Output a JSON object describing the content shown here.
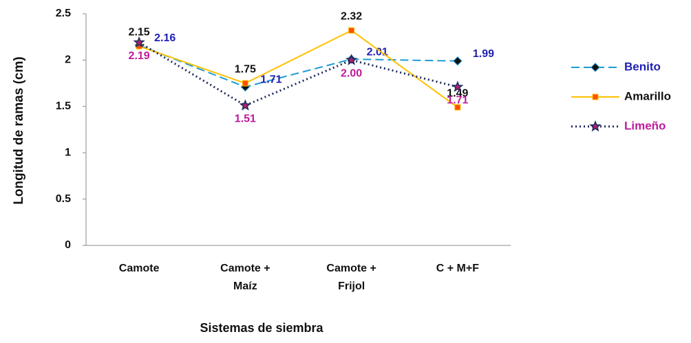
{
  "chart_data": {
    "type": "line",
    "y_label": "Longitud de ramas  (cm)",
    "x_label": "Sistemas de siembra",
    "categories": [
      "Camote",
      "Camote + Maíz",
      "Camote + Frijol",
      "C + M+F"
    ],
    "ylim": [
      0,
      2.5
    ],
    "yticks": [
      0,
      0.5,
      1,
      1.5,
      2,
      2.5
    ],
    "grid": false,
    "legend": "right",
    "series": [
      {
        "name": "Benito",
        "color": "#1a9bd7",
        "dash": "12 6",
        "marker": "diamond",
        "marker_color": "#111111",
        "label_color": "#1f1fb4",
        "values": [
          2.16,
          1.71,
          2.01,
          1.99
        ],
        "value_labels": [
          "2.16",
          "1.71",
          "2.01",
          "1.99"
        ]
      },
      {
        "name": "Amarillo",
        "color": "#ffc000",
        "dash": "none",
        "marker": "square",
        "marker_color": "#ff4e00",
        "label_color": "#111111",
        "values": [
          2.15,
          1.75,
          2.32,
          1.49
        ],
        "value_labels": [
          "2.15",
          "1.75",
          "2.32",
          "1.49"
        ]
      },
      {
        "name": "Limeño",
        "color": "#1c2a5c",
        "dash": "2 4",
        "marker": "star",
        "marker_color": "#b02070",
        "label_color": "#c0189a",
        "values": [
          2.19,
          1.51,
          2.0,
          1.71
        ],
        "value_labels": [
          "2.19",
          "1.51",
          "2.00",
          "1.71"
        ]
      }
    ]
  }
}
